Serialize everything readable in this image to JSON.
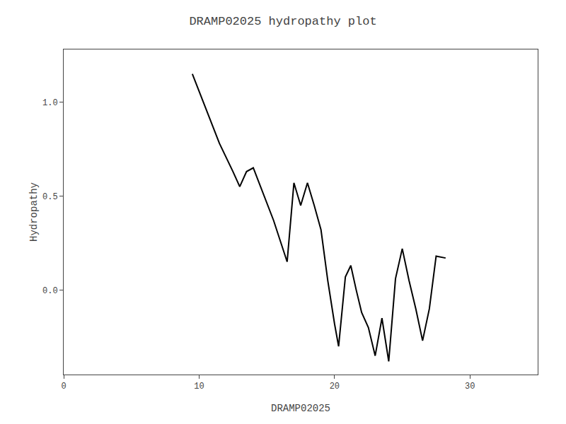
{
  "chart_data": {
    "type": "line",
    "title": "DRAMP02025 hydropathy plot",
    "xlabel": "DRAMP02025",
    "ylabel": "Hydropathy",
    "x": [
      9.5,
      10.3,
      11.5,
      12.5,
      13.0,
      13.5,
      14.0,
      15.5,
      16.5,
      17.0,
      17.5,
      18.0,
      18.5,
      19.0,
      19.5,
      20.0,
      20.3,
      20.8,
      21.2,
      21.6,
      22.0,
      22.5,
      23.0,
      23.5,
      24.0,
      24.5,
      25.0,
      25.5,
      26.0,
      26.5,
      27.0,
      27.5,
      28.2
    ],
    "values": [
      1.15,
      1.0,
      0.78,
      0.63,
      0.55,
      0.63,
      0.65,
      0.37,
      0.15,
      0.57,
      0.45,
      0.57,
      0.45,
      0.32,
      0.05,
      -0.18,
      -0.3,
      0.07,
      0.13,
      0.0,
      -0.12,
      -0.2,
      -0.35,
      -0.15,
      -0.38,
      0.06,
      0.22,
      0.05,
      -0.1,
      -0.27,
      -0.1,
      0.18,
      0.17
    ],
    "color": "#000000",
    "xlim": [
      0,
      35
    ],
    "ylim": [
      -0.45,
      1.28
    ],
    "xticks": [
      0,
      10,
      20,
      30
    ],
    "yticks": [
      {
        "value": 0.0,
        "label": "0.0"
      },
      0.5,
      {
        "value": 1.0,
        "label": "1.0"
      }
    ],
    "grid": false
  }
}
